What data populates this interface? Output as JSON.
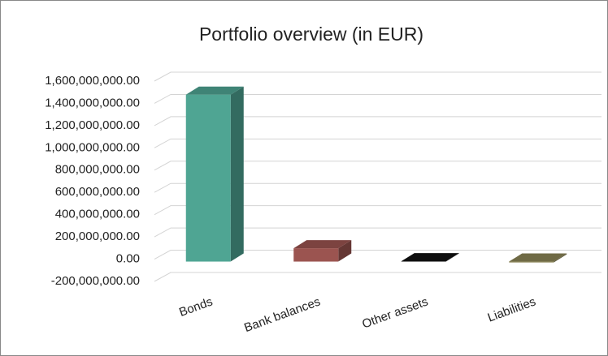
{
  "chart_data": {
    "type": "bar3d",
    "title": "Portfolio overview (in EUR)",
    "categories": [
      "Bonds",
      "Bank balances",
      "Other assets",
      "Liabilities"
    ],
    "values": [
      1500000000,
      120000000,
      3000000,
      -8000000
    ],
    "colors": [
      "#4fa593",
      "#9b5450",
      "#111111",
      "#8b8556"
    ],
    "ylim": [
      -200000000,
      1600000000
    ],
    "yticks": [
      {
        "value": -200000000,
        "label": "-200,000,000.00"
      },
      {
        "value": 0,
        "label": "0.00"
      },
      {
        "value": 200000000,
        "label": "200,000,000.00"
      },
      {
        "value": 400000000,
        "label": "400,000,000.00"
      },
      {
        "value": 600000000,
        "label": "600,000,000.00"
      },
      {
        "value": 800000000,
        "label": "800,000,000.00"
      },
      {
        "value": 1000000000,
        "label": "1,000,000,000.00"
      },
      {
        "value": 1200000000,
        "label": "1,200,000,000.00"
      },
      {
        "value": 1400000000,
        "label": "1,400,000,000.00"
      },
      {
        "value": 1600000000,
        "label": "1,600,000,000.00"
      }
    ],
    "grid": true
  }
}
